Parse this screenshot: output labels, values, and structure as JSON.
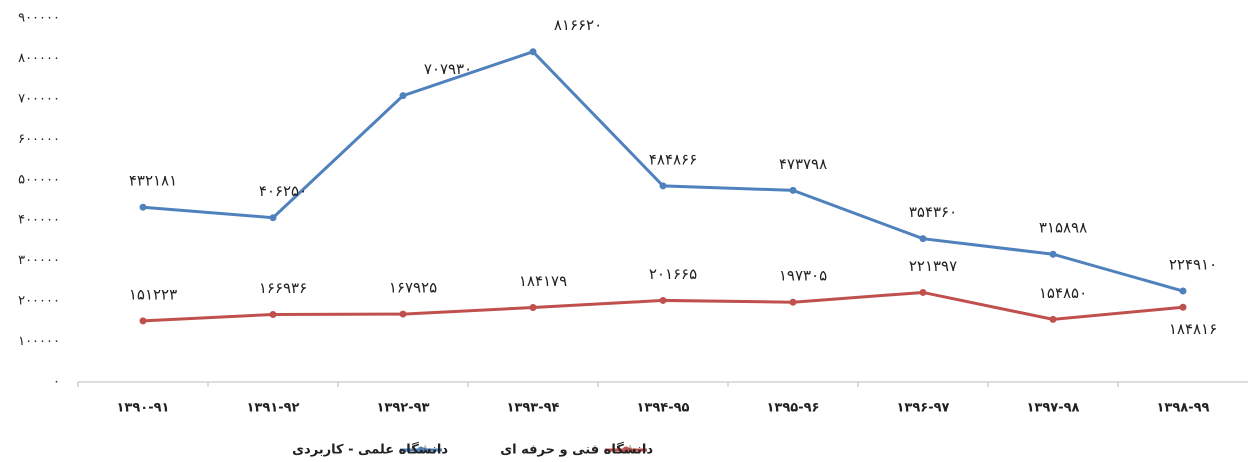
{
  "chart_data": {
    "type": "line",
    "categories": [
      "۱۳۹۰-۹۱",
      "۱۳۹۱-۹۲",
      "۱۳۹۲-۹۳",
      "۱۳۹۳-۹۴",
      "۱۳۹۴-۹۵",
      "۱۳۹۵-۹۶",
      "۱۳۹۶-۹۷",
      "۱۳۹۷-۹۸",
      "۱۳۹۸-۹۹"
    ],
    "series": [
      {
        "name": "دانشگاه علمی - کاربردی",
        "color": "#4f81bd",
        "values": [
          432181,
          406250,
          707930,
          816620,
          484866,
          473798,
          354360,
          315898,
          224910
        ],
        "value_labels": [
          "۴۳۲۱۸۱",
          "۴۰۶۲۵۰",
          "۷۰۷۹۳۰",
          "۸۱۶۶۲۰",
          "۴۸۴۸۶۶",
          "۴۷۳۷۹۸",
          "۳۵۴۳۶۰",
          "۳۱۵۸۹۸",
          "۲۲۴۹۱۰"
        ]
      },
      {
        "name": "دانشگاه فنی و حرفه ای",
        "color": "#c0504d",
        "values": [
          151223,
          166936,
          167925,
          184179,
          201665,
          197305,
          221397,
          154850,
          184816
        ],
        "value_labels": [
          "۱۵۱۲۲۳",
          "۱۶۶۹۳۶",
          "۱۶۷۹۲۵",
          "۱۸۴۱۷۹",
          "۲۰۱۶۶۵",
          "۱۹۷۳۰۵",
          "۲۲۱۳۹۷",
          "۱۵۴۸۵۰",
          "۱۸۴۸۱۶"
        ]
      }
    ],
    "ylim": [
      0,
      900000
    ],
    "yticks": [
      {
        "value": 0,
        "label": "۰"
      },
      {
        "value": 100000,
        "label": "۱۰۰۰۰۰"
      },
      {
        "value": 200000,
        "label": "۲۰۰۰۰۰"
      },
      {
        "value": 300000,
        "label": "۳۰۰۰۰۰"
      },
      {
        "value": 400000,
        "label": "۴۰۰۰۰۰"
      },
      {
        "value": 500000,
        "label": "۵۰۰۰۰۰"
      },
      {
        "value": 600000,
        "label": "۶۰۰۰۰۰"
      },
      {
        "value": 700000,
        "label": "۷۰۰۰۰۰"
      },
      {
        "value": 800000,
        "label": "۸۰۰۰۰۰"
      },
      {
        "value": 900000,
        "label": "۹۰۰۰۰۰"
      }
    ],
    "grid": false
  }
}
